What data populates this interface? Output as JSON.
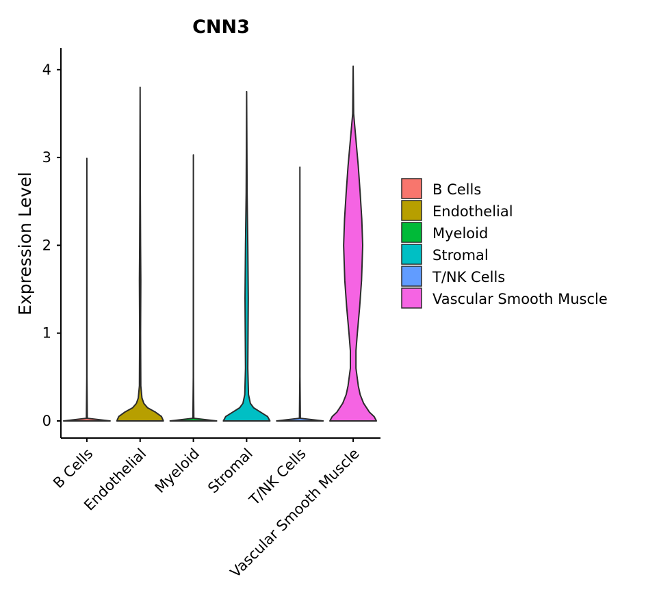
{
  "chart_data": {
    "type": "violin",
    "title": "CNN3",
    "xlabel": "",
    "ylabel": "Expression Level",
    "ylim": [
      -0.2,
      4.25
    ],
    "yticks": [
      0,
      1,
      2,
      3,
      4
    ],
    "categories": [
      "B Cells",
      "Endothelial",
      "Myeloid",
      "Stromal",
      "T/NK Cells",
      "Vascular Smooth Muscle"
    ],
    "colors": [
      "#F8766D",
      "#B79F00",
      "#00BA38",
      "#00BFC4",
      "#619CFF",
      "#F564E3"
    ],
    "series": [
      {
        "name": "B Cells",
        "max": 2.99,
        "density": [
          [
            0,
            1.0
          ],
          [
            0.03,
            0.02
          ],
          [
            0.5,
            0.004
          ],
          [
            1.5,
            0.003
          ],
          [
            2.99,
            0.0
          ]
        ]
      },
      {
        "name": "Endothelial",
        "max": 3.8,
        "density": [
          [
            0,
            1.0
          ],
          [
            0.05,
            0.92
          ],
          [
            0.1,
            0.66
          ],
          [
            0.15,
            0.32
          ],
          [
            0.2,
            0.16
          ],
          [
            0.26,
            0.08
          ],
          [
            0.4,
            0.03
          ],
          [
            1.0,
            0.02
          ],
          [
            1.6,
            0.03
          ],
          [
            2.0,
            0.02
          ],
          [
            2.6,
            0.01
          ],
          [
            3.8,
            0.0
          ]
        ]
      },
      {
        "name": "Myeloid",
        "max": 3.03,
        "density": [
          [
            0,
            1.0
          ],
          [
            0.03,
            0.02
          ],
          [
            0.5,
            0.004
          ],
          [
            1.5,
            0.003
          ],
          [
            3.03,
            0.0
          ]
        ]
      },
      {
        "name": "Stromal",
        "max": 3.75,
        "density": [
          [
            0,
            1.0
          ],
          [
            0.05,
            0.9
          ],
          [
            0.1,
            0.6
          ],
          [
            0.15,
            0.3
          ],
          [
            0.2,
            0.16
          ],
          [
            0.3,
            0.08
          ],
          [
            0.6,
            0.05
          ],
          [
            1.0,
            0.06
          ],
          [
            1.4,
            0.07
          ],
          [
            2.0,
            0.05
          ],
          [
            2.6,
            0.02
          ],
          [
            3.75,
            0.0
          ]
        ]
      },
      {
        "name": "T/NK Cells",
        "max": 2.89,
        "density": [
          [
            0,
            1.0
          ],
          [
            0.03,
            0.02
          ],
          [
            0.5,
            0.004
          ],
          [
            1.5,
            0.003
          ],
          [
            2.89,
            0.0
          ]
        ]
      },
      {
        "name": "Vascular Smooth Muscle",
        "max": 4.04,
        "density": [
          [
            0,
            1.0
          ],
          [
            0.05,
            0.9
          ],
          [
            0.1,
            0.7
          ],
          [
            0.2,
            0.45
          ],
          [
            0.3,
            0.3
          ],
          [
            0.4,
            0.22
          ],
          [
            0.6,
            0.12
          ],
          [
            0.8,
            0.12
          ],
          [
            1.0,
            0.18
          ],
          [
            1.3,
            0.28
          ],
          [
            1.6,
            0.36
          ],
          [
            2.0,
            0.41
          ],
          [
            2.3,
            0.37
          ],
          [
            2.6,
            0.3
          ],
          [
            2.9,
            0.22
          ],
          [
            3.2,
            0.12
          ],
          [
            3.5,
            0.02
          ],
          [
            4.04,
            0.0
          ]
        ]
      }
    ],
    "legend": {
      "position": "right",
      "entries": [
        "B Cells",
        "Endothelial",
        "Myeloid",
        "Stromal",
        "T/NK Cells",
        "Vascular Smooth Muscle"
      ]
    },
    "grid": false
  }
}
